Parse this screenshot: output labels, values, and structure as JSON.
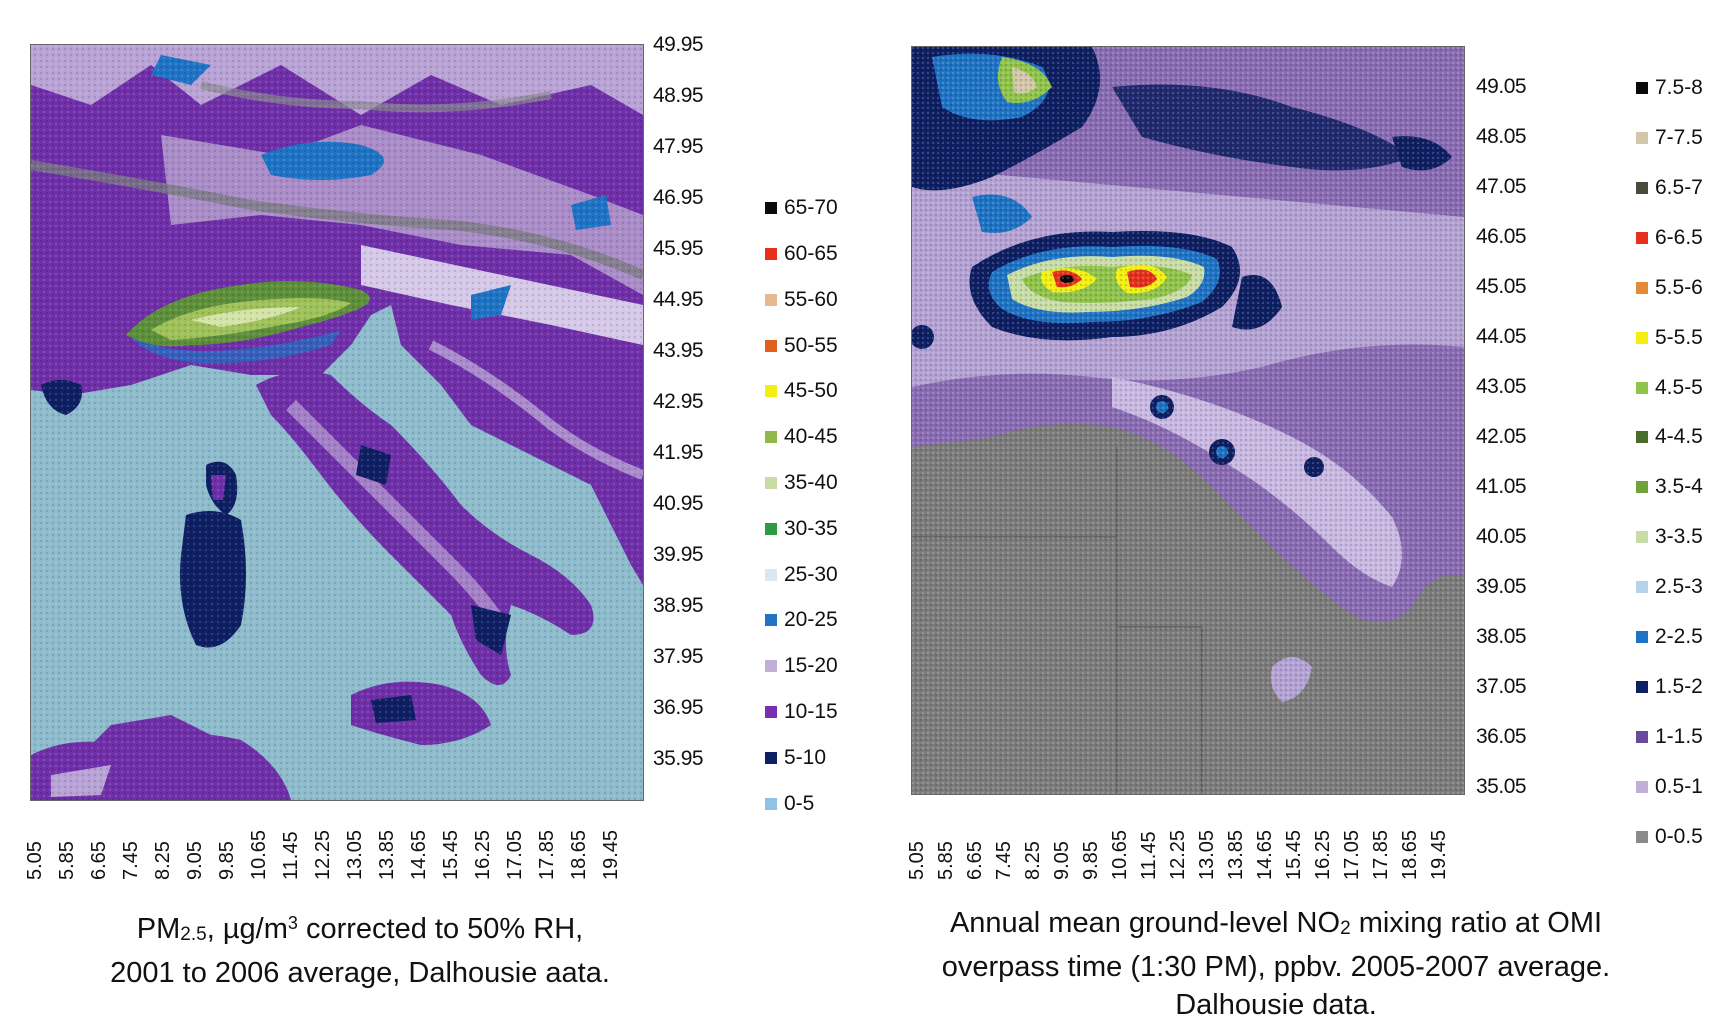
{
  "left_map": {
    "y_ticks": [
      "49.95",
      "48.95",
      "47.95",
      "46.95",
      "45.95",
      "44.95",
      "43.95",
      "42.95",
      "41.95",
      "40.95",
      "39.95",
      "38.95",
      "37.95",
      "36.95",
      "35.95"
    ],
    "x_ticks": [
      "5.05",
      "5.85",
      "6.65",
      "7.45",
      "8.25",
      "9.05",
      "9.85",
      "10.65",
      "11.45",
      "12.25",
      "13.05",
      "13.85",
      "14.65",
      "15.45",
      "16.25",
      "17.05",
      "17.85",
      "18.65",
      "19.45"
    ],
    "legend": [
      {
        "label": "65-70",
        "color": "#0a0a0a"
      },
      {
        "label": "60-65",
        "color": "#e5301c"
      },
      {
        "label": "55-60",
        "color": "#e9b98e"
      },
      {
        "label": "50-55",
        "color": "#e0601f"
      },
      {
        "label": "45-50",
        "color": "#f3ef12"
      },
      {
        "label": "40-45",
        "color": "#8fb74a"
      },
      {
        "label": "35-40",
        "color": "#c8dda6"
      },
      {
        "label": "30-35",
        "color": "#2e9a45"
      },
      {
        "label": "25-30",
        "color": "#dde7f0"
      },
      {
        "label": "20-25",
        "color": "#1f73c4"
      },
      {
        "label": "15-20",
        "color": "#c2aed6"
      },
      {
        "label": "10-15",
        "color": "#7a2fb0"
      },
      {
        "label": "5-10",
        "color": "#0e1f63"
      },
      {
        "label": "0-5",
        "color": "#8ec2e6"
      }
    ],
    "caption": {
      "line1_pre": "PM",
      "line1_sub": "2.5",
      "line1_mid": ", µg/m",
      "line1_sup": "3",
      "line1_post": " corrected to 50% RH,",
      "line2": "2001 to 2006 average,  Dalhousie aata."
    }
  },
  "right_map": {
    "y_ticks": [
      "49.05",
      "48.05",
      "47.05",
      "46.05",
      "45.05",
      "44.05",
      "43.05",
      "42.05",
      "41.05",
      "40.05",
      "39.05",
      "38.05",
      "37.05",
      "36.05",
      "35.05"
    ],
    "x_ticks": [
      "5.05",
      "5.85",
      "6.65",
      "7.45",
      "8.25",
      "9.05",
      "9.85",
      "10.65",
      "11.45",
      "12.25",
      "13.05",
      "13.85",
      "14.65",
      "15.45",
      "16.25",
      "17.05",
      "17.85",
      "18.65",
      "19.45"
    ],
    "legend": [
      {
        "label": "7.5-8",
        "color": "#0a0a0a"
      },
      {
        "label": "7-7.5",
        "color": "#d2c7a8"
      },
      {
        "label": "6.5-7",
        "color": "#4a4a3a"
      },
      {
        "label": "6-6.5",
        "color": "#e5301c"
      },
      {
        "label": "5.5-6",
        "color": "#e48a3a"
      },
      {
        "label": "5-5.5",
        "color": "#f3ef12"
      },
      {
        "label": "4.5-5",
        "color": "#8fc34a"
      },
      {
        "label": "4-4.5",
        "color": "#4a6b2a"
      },
      {
        "label": "3.5-4",
        "color": "#6fa23a"
      },
      {
        "label": "3-3.5",
        "color": "#c8dda6"
      },
      {
        "label": "2.5-3",
        "color": "#b7d2ec"
      },
      {
        "label": "2-2.5",
        "color": "#1f73c4"
      },
      {
        "label": "1.5-2",
        "color": "#0e1f63"
      },
      {
        "label": "1-1.5",
        "color": "#6a4a9a"
      },
      {
        "label": "0.5-1",
        "color": "#c2aed6"
      },
      {
        "label": "0-0.5",
        "color": "#8a8a8a"
      }
    ],
    "caption": {
      "line1_pre": "Annual mean ground-level NO",
      "line1_sub": "2",
      "line1_post": " mixing ratio at OMI",
      "line2": "overpass time (1:30 PM), ppbv. 2005-2007 average.",
      "line3": "Dalhousie data."
    }
  }
}
